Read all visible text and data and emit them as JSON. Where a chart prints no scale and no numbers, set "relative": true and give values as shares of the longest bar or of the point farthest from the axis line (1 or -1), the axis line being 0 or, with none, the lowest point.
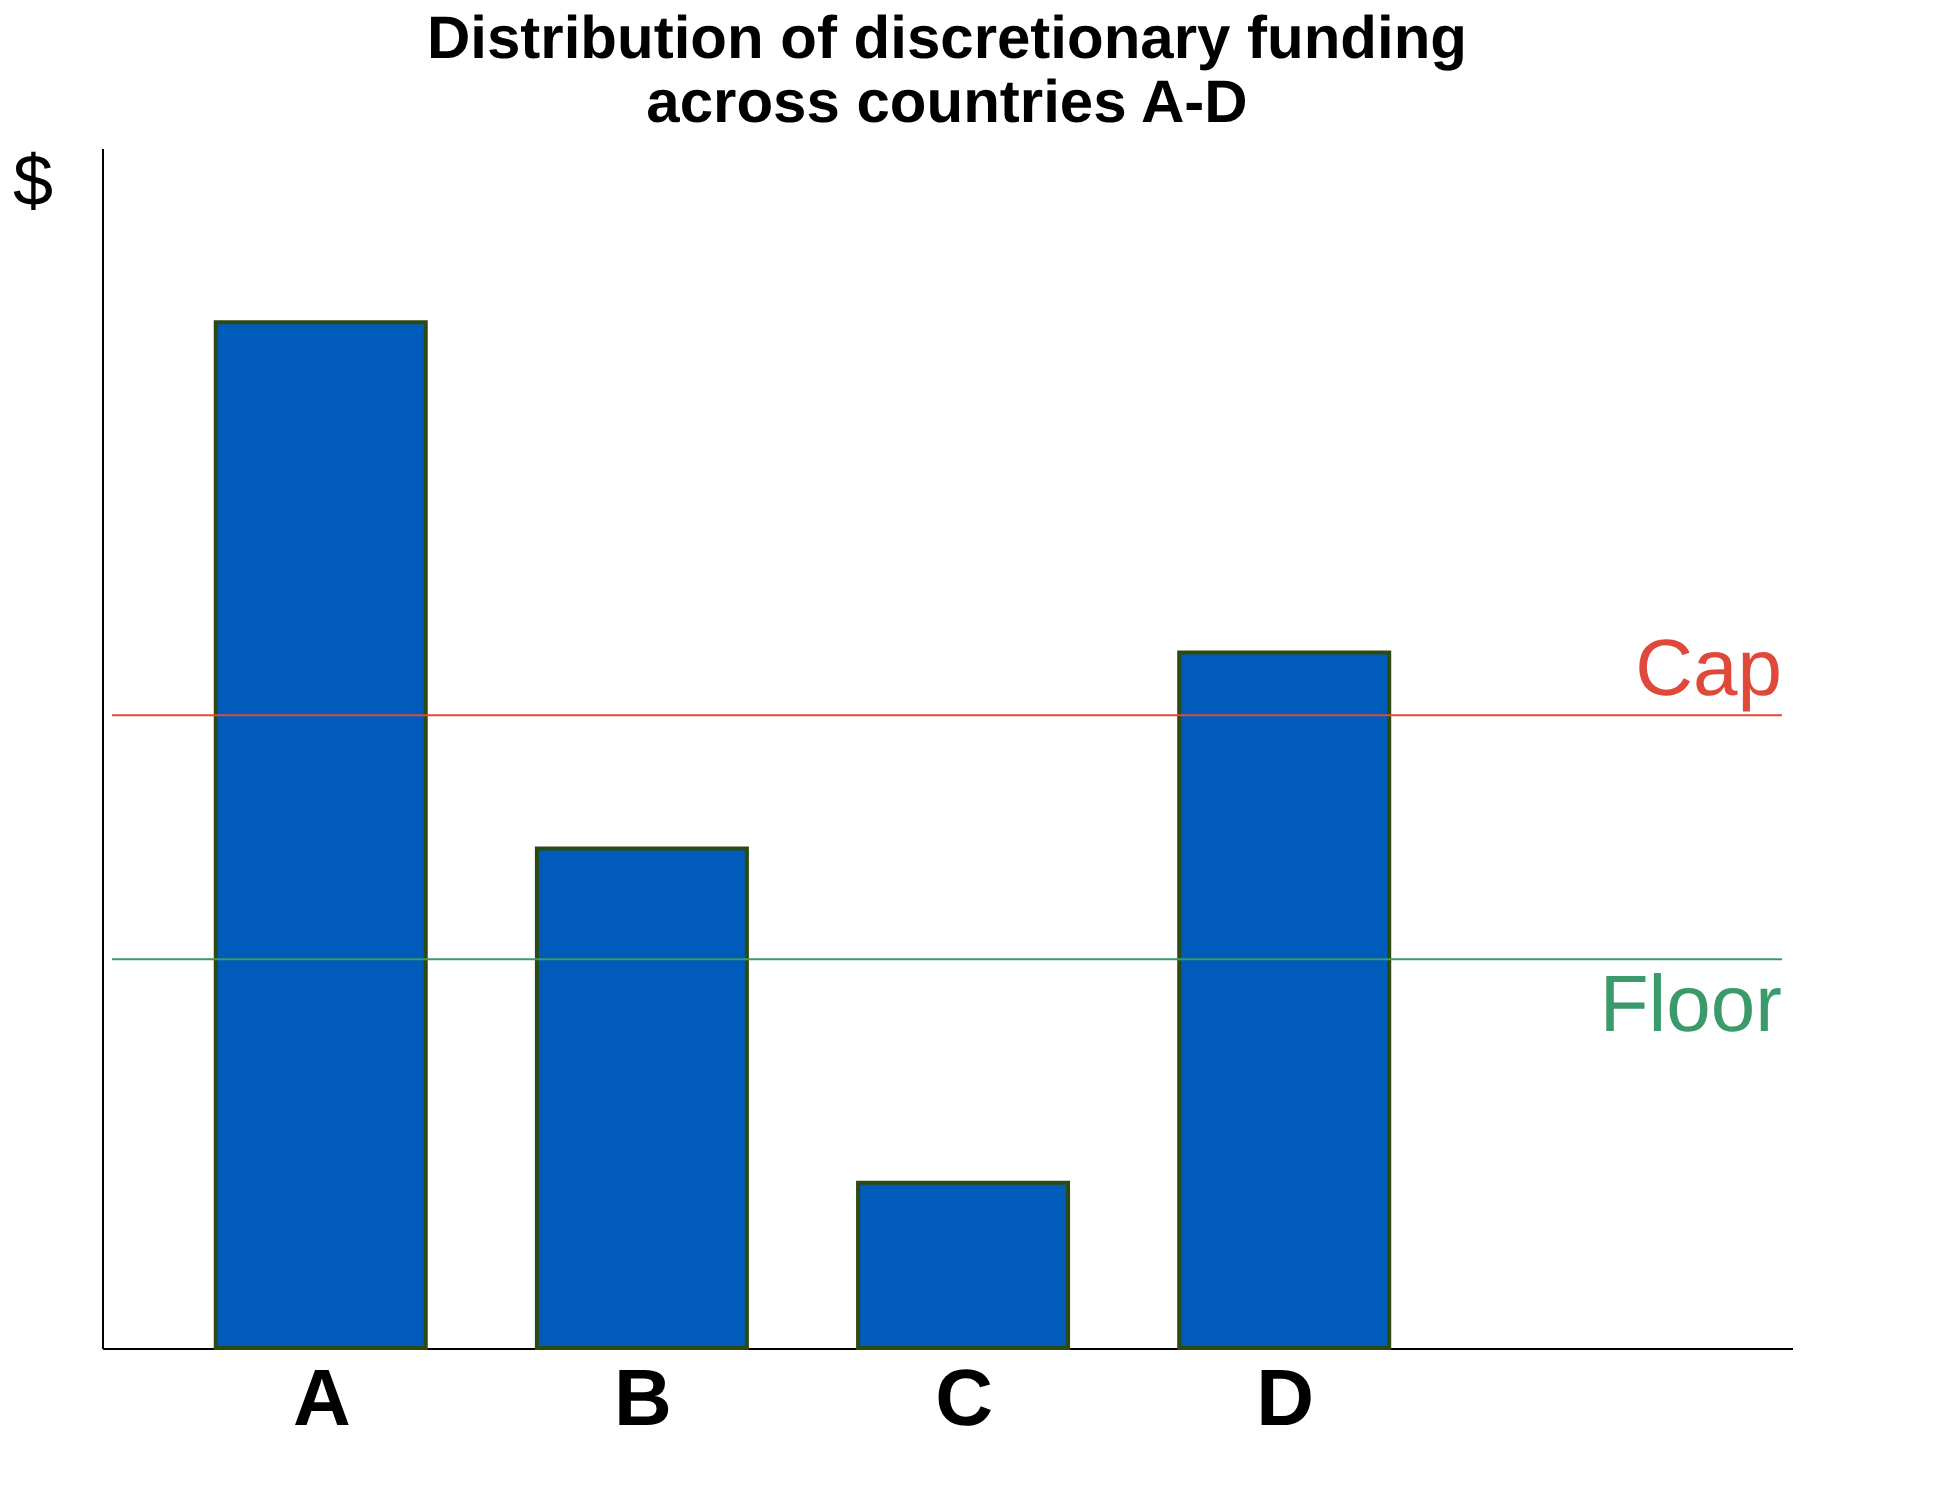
{
  "chart_data": {
    "type": "bar",
    "title": "Distribution of discretionary funding across countries A-D",
    "ylabel": "$",
    "categories": [
      "A",
      "B",
      "C",
      "D"
    ],
    "values": [
      1,
      0.487,
      0.161,
      0.678
    ],
    "color": "#005bbb",
    "relative": true,
    "grid": false,
    "ref_lines": [
      {
        "axis": "y",
        "value": 0.617,
        "label": "Cap",
        "color": "#e0483a"
      },
      {
        "axis": "y",
        "value": 0.379,
        "label": "Floor",
        "color": "#3a9a6a"
      }
    ]
  }
}
